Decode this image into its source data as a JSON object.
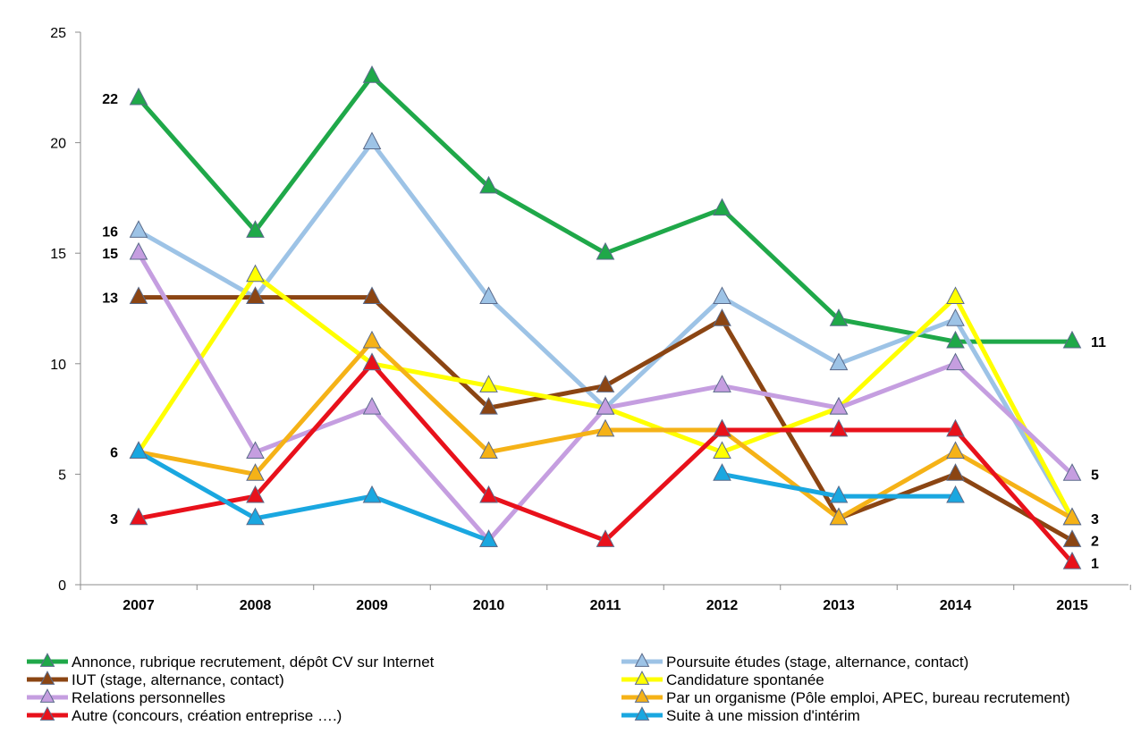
{
  "chart_data": {
    "type": "line",
    "title": "",
    "xlabel": "",
    "ylabel": "",
    "ylim": [
      0,
      25
    ],
    "yticks": [
      0,
      5,
      10,
      15,
      20,
      25
    ],
    "grid": false,
    "legend_position": "bottom",
    "categories": [
      "2007",
      "2008",
      "2009",
      "2010",
      "2011",
      "2012",
      "2013",
      "2014",
      "2015"
    ],
    "series": [
      {
        "name": "Annonce, rubrique recrutement, dépôt CV sur Internet",
        "color": "#1fa849",
        "values": [
          22,
          16,
          23,
          18,
          15,
          17,
          12,
          11,
          11
        ]
      },
      {
        "name": "Poursuite études (stage, alternance, contact)",
        "color": "#9dc3e6",
        "values": [
          16,
          13,
          20,
          13,
          8,
          13,
          10,
          12,
          3
        ]
      },
      {
        "name": "IUT (stage, alternance, contact)",
        "color": "#8b4513",
        "values": [
          13,
          13,
          13,
          8,
          9,
          12,
          3,
          5,
          2
        ]
      },
      {
        "name": "Candidature spontanée",
        "color": "#ffff00",
        "values": [
          6,
          14,
          10,
          9,
          8,
          6,
          8,
          13,
          3
        ]
      },
      {
        "name": "Relations personnelles",
        "color": "#c59ee0",
        "values": [
          15,
          6,
          8,
          2,
          8,
          9,
          8,
          10,
          5
        ]
      },
      {
        "name": "Par un organisme (Pôle emploi, APEC, bureau recrutement)",
        "color": "#f5b217",
        "values": [
          6,
          5,
          11,
          6,
          7,
          7,
          3,
          6,
          3
        ]
      },
      {
        "name": "Autre (concours, création entreprise ….)",
        "color": "#e8111b",
        "values": [
          3,
          4,
          10,
          4,
          2,
          7,
          7,
          7,
          1
        ]
      },
      {
        "name": "Suite à une mission d'intérim",
        "color": "#1aa7e0",
        "values": [
          6,
          3,
          4,
          2,
          null,
          5,
          4,
          4,
          null
        ]
      }
    ],
    "start_labels": [
      {
        "value": 22,
        "text": "22"
      },
      {
        "value": 16,
        "text": "16"
      },
      {
        "value": 15,
        "text": "15"
      },
      {
        "value": 13,
        "text": "13"
      },
      {
        "value": 6,
        "text": "6"
      },
      {
        "value": 3,
        "text": "3"
      }
    ],
    "end_labels": [
      {
        "value": 11,
        "text": "11"
      },
      {
        "value": 5,
        "text": "5"
      },
      {
        "value": 3,
        "text": "3"
      },
      {
        "value": 2,
        "text": "2"
      },
      {
        "value": 1,
        "text": "1"
      }
    ]
  }
}
